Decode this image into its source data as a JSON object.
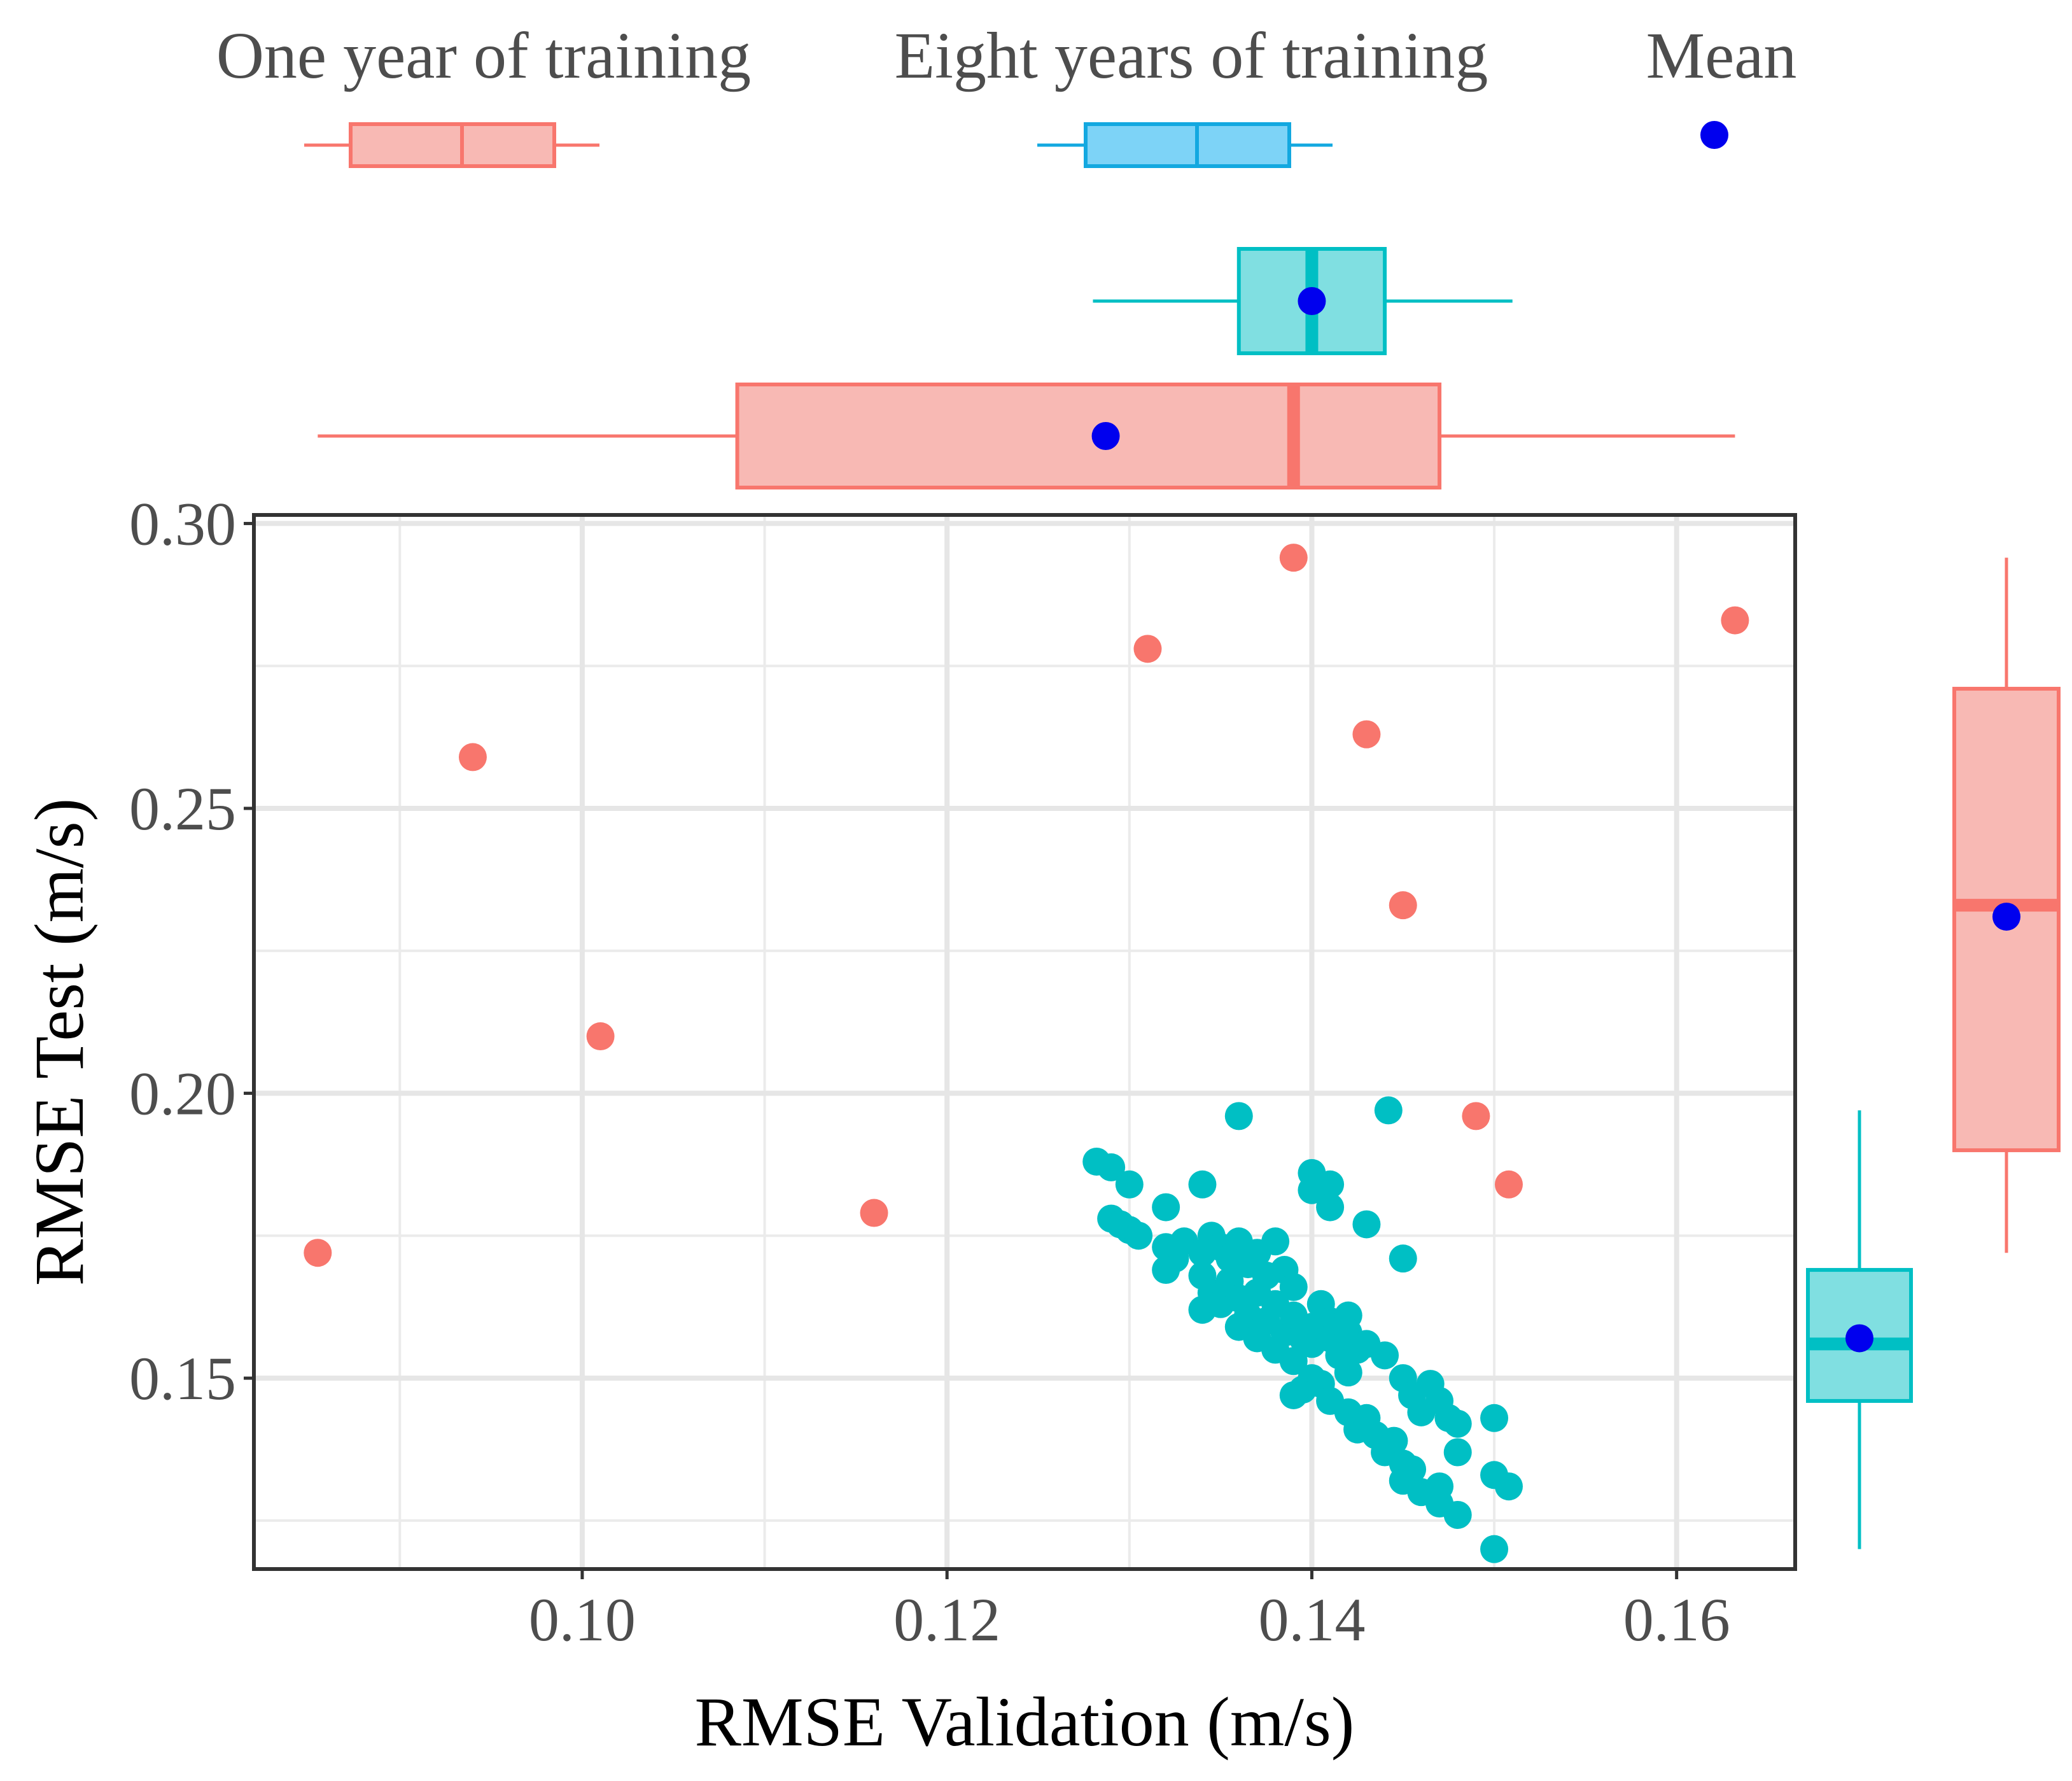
{
  "chart_data": {
    "type": "scatter",
    "xlabel": "RMSE Validation (m/s)",
    "ylabel": "RMSE Test (m/s)",
    "xlim": [
      0.082,
      0.1665
    ],
    "ylim": [
      0.1165,
      0.3015
    ],
    "x_ticks": [
      "0.10",
      "0.12",
      "0.14",
      "0.16"
    ],
    "x_tick_values": [
      0.1,
      0.12,
      0.14,
      0.16
    ],
    "x_minor_values": [
      0.09,
      0.11,
      0.13,
      0.15
    ],
    "y_ticks": [
      "0.15",
      "0.20",
      "0.25",
      "0.30"
    ],
    "y_tick_values": [
      0.15,
      0.2,
      0.25,
      0.3
    ],
    "y_minor_values": [
      0.125,
      0.175,
      0.225,
      0.275
    ],
    "grid": true,
    "legend": {
      "position": "top",
      "items": [
        {
          "label": "One year of training",
          "kind": "box",
          "color": "#F8766D",
          "fill": "#F8B9B4"
        },
        {
          "label": "Eight years of training",
          "kind": "box",
          "color": "#13A8E0",
          "fill": "#7DD3F7"
        },
        {
          "label": "Mean",
          "kind": "point",
          "color": "#0000EE"
        }
      ]
    },
    "series": [
      {
        "name": "One year of training",
        "color": "#F8766D",
        "points": [
          {
            "x": 0.0855,
            "y": 0.172
          },
          {
            "x": 0.094,
            "y": 0.259
          },
          {
            "x": 0.101,
            "y": 0.21
          },
          {
            "x": 0.116,
            "y": 0.179
          },
          {
            "x": 0.131,
            "y": 0.278
          },
          {
            "x": 0.139,
            "y": 0.294
          },
          {
            "x": 0.143,
            "y": 0.263
          },
          {
            "x": 0.145,
            "y": 0.233
          },
          {
            "x": 0.149,
            "y": 0.196
          },
          {
            "x": 0.1508,
            "y": 0.184
          },
          {
            "x": 0.1632,
            "y": 0.283
          }
        ]
      },
      {
        "name": "Eight years of training",
        "color": "#00BFC4",
        "points": [
          {
            "x": 0.1282,
            "y": 0.188
          },
          {
            "x": 0.129,
            "y": 0.187
          },
          {
            "x": 0.13,
            "y": 0.184
          },
          {
            "x": 0.129,
            "y": 0.178
          },
          {
            "x": 0.1295,
            "y": 0.177
          },
          {
            "x": 0.13,
            "y": 0.176
          },
          {
            "x": 0.1305,
            "y": 0.175
          },
          {
            "x": 0.132,
            "y": 0.18
          },
          {
            "x": 0.134,
            "y": 0.184
          },
          {
            "x": 0.136,
            "y": 0.196
          },
          {
            "x": 0.132,
            "y": 0.173
          },
          {
            "x": 0.1325,
            "y": 0.171
          },
          {
            "x": 0.132,
            "y": 0.169
          },
          {
            "x": 0.133,
            "y": 0.174
          },
          {
            "x": 0.134,
            "y": 0.172
          },
          {
            "x": 0.1345,
            "y": 0.175
          },
          {
            "x": 0.135,
            "y": 0.173
          },
          {
            "x": 0.1355,
            "y": 0.171
          },
          {
            "x": 0.136,
            "y": 0.174
          },
          {
            "x": 0.1365,
            "y": 0.17
          },
          {
            "x": 0.137,
            "y": 0.172
          },
          {
            "x": 0.1375,
            "y": 0.168
          },
          {
            "x": 0.138,
            "y": 0.174
          },
          {
            "x": 0.1385,
            "y": 0.169
          },
          {
            "x": 0.139,
            "y": 0.166
          },
          {
            "x": 0.134,
            "y": 0.168
          },
          {
            "x": 0.1345,
            "y": 0.165
          },
          {
            "x": 0.134,
            "y": 0.162
          },
          {
            "x": 0.135,
            "y": 0.163
          },
          {
            "x": 0.1355,
            "y": 0.167
          },
          {
            "x": 0.136,
            "y": 0.164
          },
          {
            "x": 0.1365,
            "y": 0.161
          },
          {
            "x": 0.137,
            "y": 0.165
          },
          {
            "x": 0.1375,
            "y": 0.16
          },
          {
            "x": 0.138,
            "y": 0.163
          },
          {
            "x": 0.136,
            "y": 0.159
          },
          {
            "x": 0.137,
            "y": 0.157
          },
          {
            "x": 0.138,
            "y": 0.155
          },
          {
            "x": 0.1385,
            "y": 0.158
          },
          {
            "x": 0.139,
            "y": 0.161
          },
          {
            "x": 0.1395,
            "y": 0.157
          },
          {
            "x": 0.139,
            "y": 0.153
          },
          {
            "x": 0.14,
            "y": 0.156
          },
          {
            "x": 0.14,
            "y": 0.159
          },
          {
            "x": 0.1405,
            "y": 0.163
          },
          {
            "x": 0.141,
            "y": 0.16
          },
          {
            "x": 0.141,
            "y": 0.157
          },
          {
            "x": 0.1415,
            "y": 0.154
          },
          {
            "x": 0.142,
            "y": 0.161
          },
          {
            "x": 0.142,
            "y": 0.158
          },
          {
            "x": 0.14,
            "y": 0.15
          },
          {
            "x": 0.1395,
            "y": 0.148
          },
          {
            "x": 0.139,
            "y": 0.147
          },
          {
            "x": 0.1405,
            "y": 0.149
          },
          {
            "x": 0.141,
            "y": 0.146
          },
          {
            "x": 0.142,
            "y": 0.151
          },
          {
            "x": 0.1425,
            "y": 0.155
          },
          {
            "x": 0.143,
            "y": 0.156
          },
          {
            "x": 0.144,
            "y": 0.154
          },
          {
            "x": 0.142,
            "y": 0.144
          },
          {
            "x": 0.1425,
            "y": 0.141
          },
          {
            "x": 0.143,
            "y": 0.143
          },
          {
            "x": 0.1435,
            "y": 0.14
          },
          {
            "x": 0.144,
            "y": 0.137
          },
          {
            "x": 0.1445,
            "y": 0.139
          },
          {
            "x": 0.145,
            "y": 0.135
          },
          {
            "x": 0.145,
            "y": 0.132
          },
          {
            "x": 0.1455,
            "y": 0.134
          },
          {
            "x": 0.146,
            "y": 0.13
          },
          {
            "x": 0.147,
            "y": 0.128
          },
          {
            "x": 0.147,
            "y": 0.131
          },
          {
            "x": 0.148,
            "y": 0.126
          },
          {
            "x": 0.145,
            "y": 0.15
          },
          {
            "x": 0.1455,
            "y": 0.147
          },
          {
            "x": 0.146,
            "y": 0.144
          },
          {
            "x": 0.1465,
            "y": 0.149
          },
          {
            "x": 0.147,
            "y": 0.146
          },
          {
            "x": 0.1475,
            "y": 0.143
          },
          {
            "x": 0.148,
            "y": 0.142
          },
          {
            "x": 0.148,
            "y": 0.137
          },
          {
            "x": 0.15,
            "y": 0.143
          },
          {
            "x": 0.15,
            "y": 0.133
          },
          {
            "x": 0.1508,
            "y": 0.131
          },
          {
            "x": 0.15,
            "y": 0.12
          },
          {
            "x": 0.14,
            "y": 0.186
          },
          {
            "x": 0.14,
            "y": 0.183
          },
          {
            "x": 0.141,
            "y": 0.184
          },
          {
            "x": 0.141,
            "y": 0.18
          },
          {
            "x": 0.143,
            "y": 0.177
          },
          {
            "x": 0.145,
            "y": 0.171
          },
          {
            "x": 0.1442,
            "y": 0.197
          }
        ]
      }
    ],
    "top_boxplots": [
      {
        "name": "Eight years of training",
        "color": "#00BFC4",
        "fill": "#80DFE1",
        "whisker_low": 0.128,
        "q1": 0.136,
        "median": 0.14,
        "q3": 0.144,
        "whisker_high": 0.151,
        "mean": 0.14
      },
      {
        "name": "One year of training",
        "color": "#F8766D",
        "fill": "#F8B9B4",
        "whisker_low": 0.0855,
        "q1": 0.1085,
        "median": 0.139,
        "q3": 0.147,
        "whisker_high": 0.1632,
        "mean": 0.1287
      }
    ],
    "right_boxplots": [
      {
        "name": "Eight years of training",
        "color": "#00BFC4",
        "fill": "#80DFE1",
        "whisker_low": 0.12,
        "q1": 0.146,
        "median": 0.156,
        "q3": 0.169,
        "whisker_high": 0.197,
        "mean": 0.157
      },
      {
        "name": "One year of training",
        "color": "#F8766D",
        "fill": "#F8B9B4",
        "whisker_low": 0.172,
        "q1": 0.19,
        "median": 0.233,
        "q3": 0.271,
        "whisker_high": 0.294,
        "mean": 0.231
      }
    ]
  }
}
